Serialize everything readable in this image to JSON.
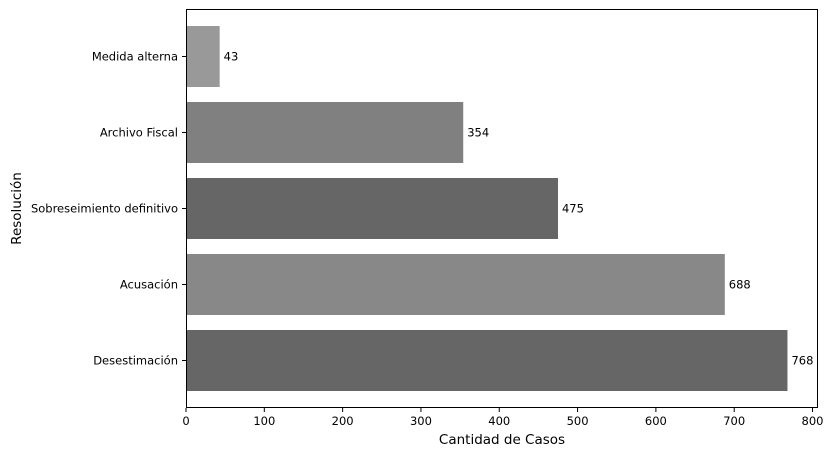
{
  "chart_data": {
    "type": "bar",
    "orientation": "horizontal",
    "title": "",
    "xlabel": "Cantidad de Casos",
    "ylabel": "Resolución",
    "categories": [
      "Desestimación",
      "Acusación",
      "Sobreseimiento definitivo",
      "Archivo Fiscal",
      "Medida alterna"
    ],
    "values": [
      768,
      688,
      475,
      354,
      43
    ],
    "colors": [
      "#666666",
      "#888888",
      "#666666",
      "#808080",
      "#999999"
    ],
    "xlim": [
      0,
      807
    ],
    "xticks": [
      0,
      100,
      200,
      300,
      400,
      500,
      600,
      700,
      800
    ],
    "grid": false,
    "legend": "none",
    "data_labels": true
  }
}
